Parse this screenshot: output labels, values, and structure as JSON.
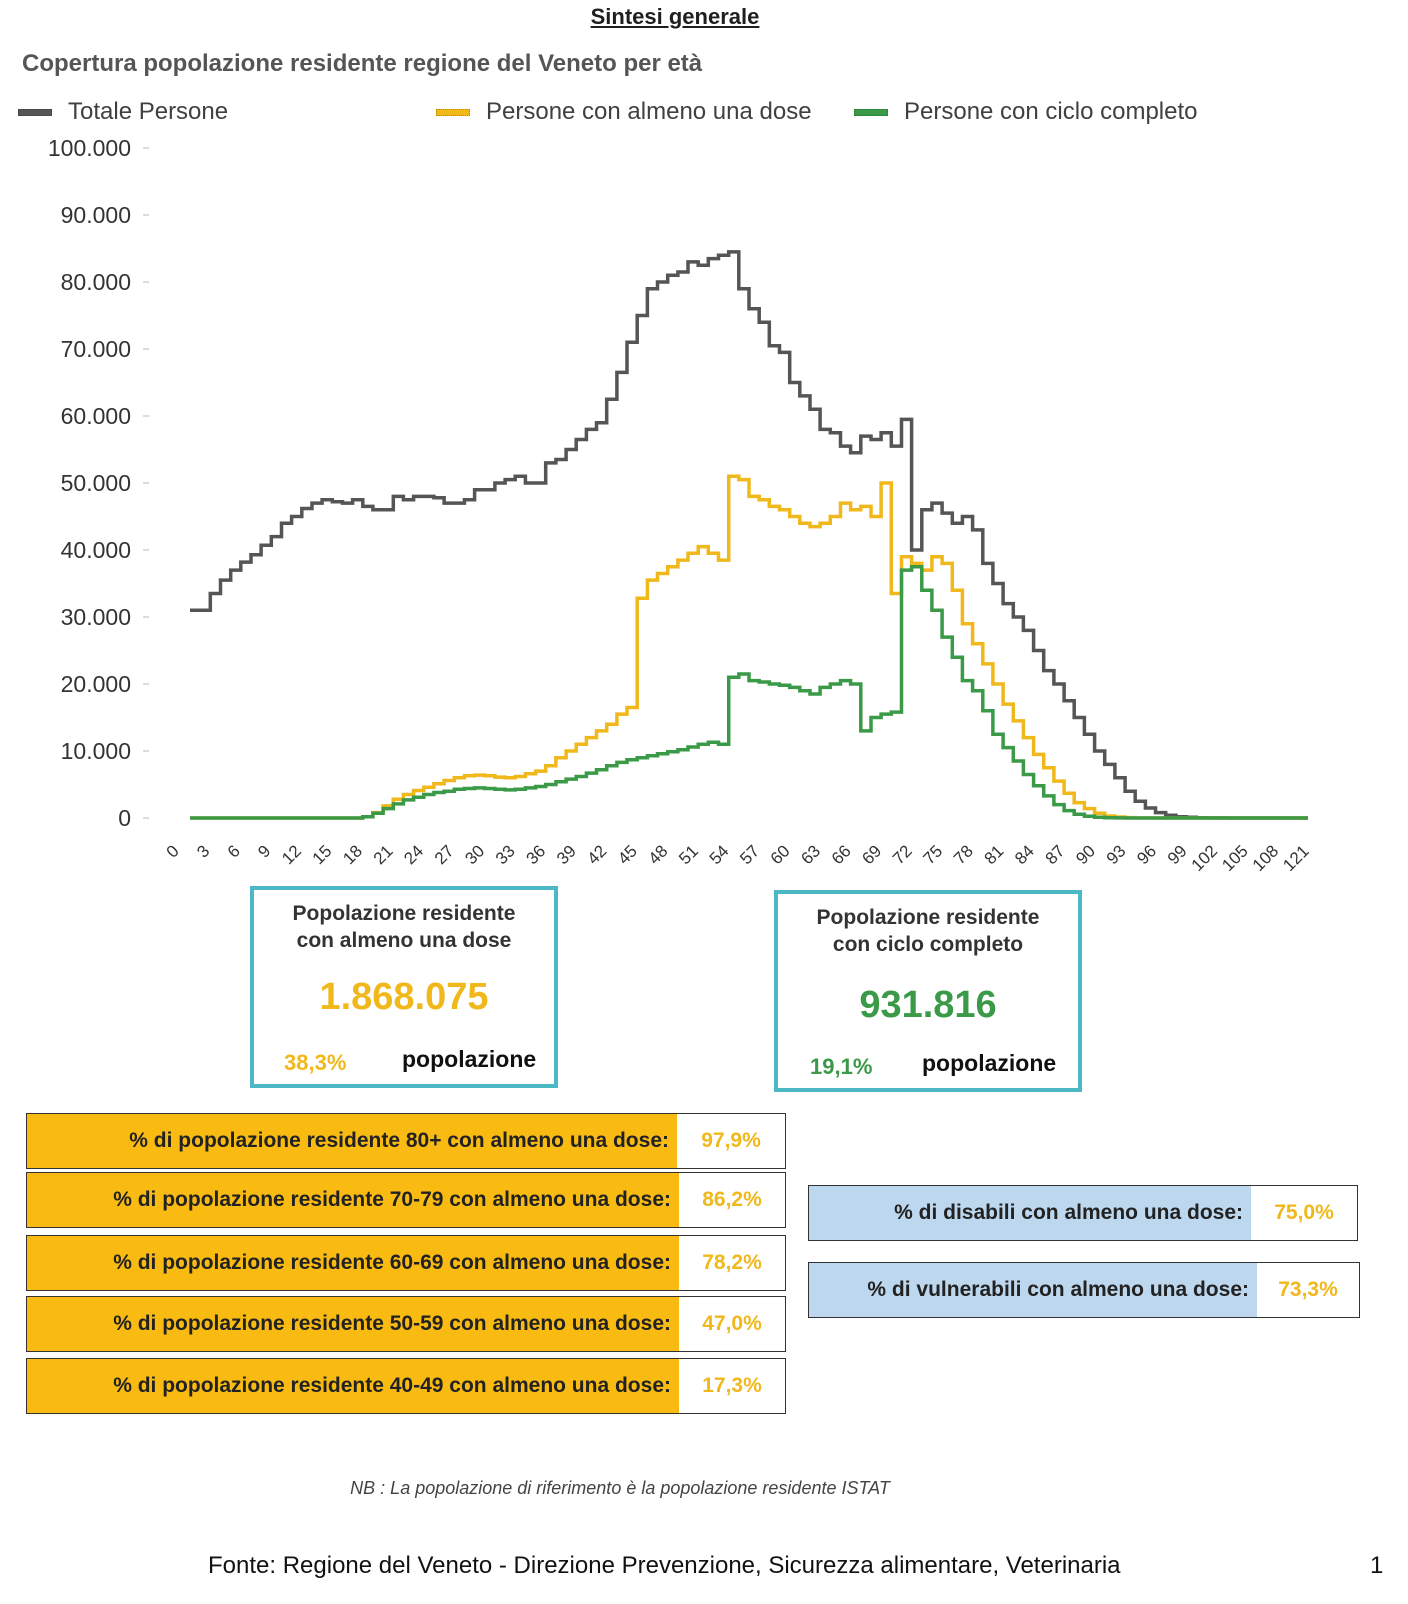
{
  "page": {
    "title": "Sintesi generale",
    "note": "NB : La popolazione di riferimento è la popolazione residente ISTAT",
    "footer": "Fonte: Regione del Veneto - Direzione Prevenzione, Sicurezza alimentare, Veterinaria",
    "page_number": "1"
  },
  "legend": {
    "total": "Totale Persone",
    "one_dose": "Persone con almeno una dose",
    "complete": "Persone con ciclo completo"
  },
  "colors": {
    "total": "#555555",
    "one_dose": "#f0b81a",
    "complete": "#3a9a47",
    "kpi_border": "#4bb8c4",
    "age_bar": "#f9bb12",
    "special_bar": "#bdd7ee"
  },
  "chart_data": {
    "type": "line",
    "step": true,
    "title": "Copertura popolazione residente regione del Veneto per età",
    "xlabel": "",
    "ylabel": "",
    "ylim": [
      0,
      100000
    ],
    "yticks": [
      0,
      10000,
      20000,
      30000,
      40000,
      50000,
      60000,
      70000,
      80000,
      90000,
      100000
    ],
    "ytick_labels": [
      "0",
      "10.000",
      "20.000",
      "30.000",
      "40.000",
      "50.000",
      "60.000",
      "70.000",
      "80.000",
      "90.000",
      "100.000"
    ],
    "xtick_labels": [
      "0",
      "3",
      "6",
      "9",
      "12",
      "15",
      "18",
      "21",
      "24",
      "27",
      "30",
      "33",
      "36",
      "39",
      "42",
      "45",
      "48",
      "51",
      "54",
      "57",
      "60",
      "63",
      "66",
      "69",
      "72",
      "75",
      "78",
      "81",
      "84",
      "87",
      "90",
      "93",
      "96",
      "99",
      "102",
      "105",
      "108",
      "121"
    ],
    "grid": false,
    "legend_position": "top",
    "series": [
      {
        "name": "Totale Persone",
        "values": [
          31000,
          31000,
          33500,
          35500,
          37000,
          38200,
          39300,
          40700,
          42000,
          44000,
          45000,
          46200,
          47000,
          47500,
          47200,
          47000,
          47500,
          46500,
          46000,
          46000,
          48000,
          47500,
          48000,
          48000,
          47800,
          47000,
          47000,
          47500,
          49000,
          49000,
          50000,
          50500,
          51000,
          50000,
          50000,
          53000,
          53500,
          55000,
          56500,
          58000,
          59000,
          62500,
          66500,
          71000,
          75000,
          79000,
          80000,
          81000,
          81500,
          83000,
          82500,
          83500,
          84000,
          84500,
          79000,
          76000,
          74000,
          70500,
          69500,
          65000,
          63000,
          61000,
          58000,
          57500,
          55500,
          54500,
          57000,
          56500,
          57500,
          55500,
          59500,
          40000,
          46000,
          47000,
          45500,
          44000,
          45000,
          43000,
          38000,
          35000,
          32000,
          30000,
          28000,
          25000,
          22000,
          20000,
          17500,
          15000,
          12500,
          10000,
          8000,
          6000,
          4000,
          2500,
          1500,
          800,
          400,
          200,
          100,
          50,
          20,
          10,
          5,
          0,
          0,
          0,
          0,
          0,
          0,
          0
        ]
      },
      {
        "name": "Persone con almeno una dose",
        "values": [
          0,
          0,
          0,
          0,
          0,
          0,
          0,
          0,
          0,
          0,
          0,
          0,
          0,
          0,
          0,
          0,
          0,
          200,
          800,
          1800,
          2800,
          3500,
          4100,
          4600,
          5100,
          5600,
          6000,
          6300,
          6400,
          6300,
          6100,
          6000,
          6200,
          6600,
          7000,
          7800,
          9000,
          10000,
          11000,
          12000,
          13000,
          14000,
          15500,
          16500,
          32800,
          35500,
          36500,
          37500,
          38500,
          39500,
          40500,
          39500,
          38500,
          51000,
          50500,
          48000,
          47500,
          46500,
          46000,
          45000,
          44000,
          43500,
          44000,
          45000,
          47000,
          46000,
          46500,
          45000,
          50000,
          33500,
          39000,
          38000,
          37000,
          39000,
          38000,
          34000,
          29000,
          26000,
          23000,
          20000,
          17000,
          14500,
          12000,
          9500,
          7500,
          5500,
          3700,
          2300,
          1400,
          700,
          300,
          150,
          60,
          20,
          10,
          5,
          0,
          0,
          0,
          0,
          0,
          0,
          0,
          0,
          0,
          0,
          0,
          0,
          0,
          0
        ]
      },
      {
        "name": "Persone con ciclo completo",
        "values": [
          0,
          0,
          0,
          0,
          0,
          0,
          0,
          0,
          0,
          0,
          0,
          0,
          0,
          0,
          0,
          0,
          0,
          200,
          700,
          1400,
          2100,
          2700,
          3100,
          3500,
          3800,
          4000,
          4300,
          4400,
          4500,
          4400,
          4300,
          4200,
          4300,
          4500,
          4700,
          5000,
          5400,
          5800,
          6200,
          6700,
          7200,
          7800,
          8300,
          8700,
          9000,
          9300,
          9600,
          9900,
          10200,
          10600,
          11000,
          11300,
          11000,
          21000,
          21500,
          20500,
          20300,
          20000,
          19800,
          19500,
          19000,
          18500,
          19500,
          20000,
          20500,
          20000,
          13000,
          15000,
          15500,
          15800,
          37000,
          37500,
          34000,
          31000,
          27000,
          24000,
          20500,
          19000,
          16000,
          12500,
          10500,
          8500,
          6500,
          4800,
          3300,
          2000,
          1100,
          550,
          250,
          100,
          40,
          15,
          5,
          0,
          0,
          0,
          0,
          0,
          0,
          0,
          0,
          0,
          0,
          0,
          0,
          0,
          0,
          0,
          0,
          0
        ]
      }
    ]
  },
  "kpi": {
    "one_dose": {
      "title_line1": "Popolazione residente",
      "title_line2": "con almeno una dose",
      "value": "1.868.075",
      "pct": "38,3%",
      "pop_label": "popolazione"
    },
    "complete": {
      "title_line1": "Popolazione residente",
      "title_line2": "con ciclo completo",
      "value": "931.816",
      "pct": "19,1%",
      "pop_label": "popolazione"
    }
  },
  "age_stats": [
    {
      "label": "% di popolazione residente 80+ con almeno una dose:",
      "value": "97,9%"
    },
    {
      "label": "% di popolazione residente 70-79 con almeno una dose:",
      "value": "86,2%"
    },
    {
      "label": "% di popolazione residente 60-69 con almeno una dose:",
      "value": "78,2%"
    },
    {
      "label": "% di popolazione residente 50-59 con almeno una dose:",
      "value": "47,0%"
    },
    {
      "label": "% di popolazione residente 40-49 con almeno una dose:",
      "value": "17,3%"
    }
  ],
  "special_stats": [
    {
      "label": "% di disabili con almeno una dose:",
      "value": "75,0%"
    },
    {
      "label": "% di vulnerabili con almeno una dose:",
      "value": "73,3%"
    }
  ]
}
